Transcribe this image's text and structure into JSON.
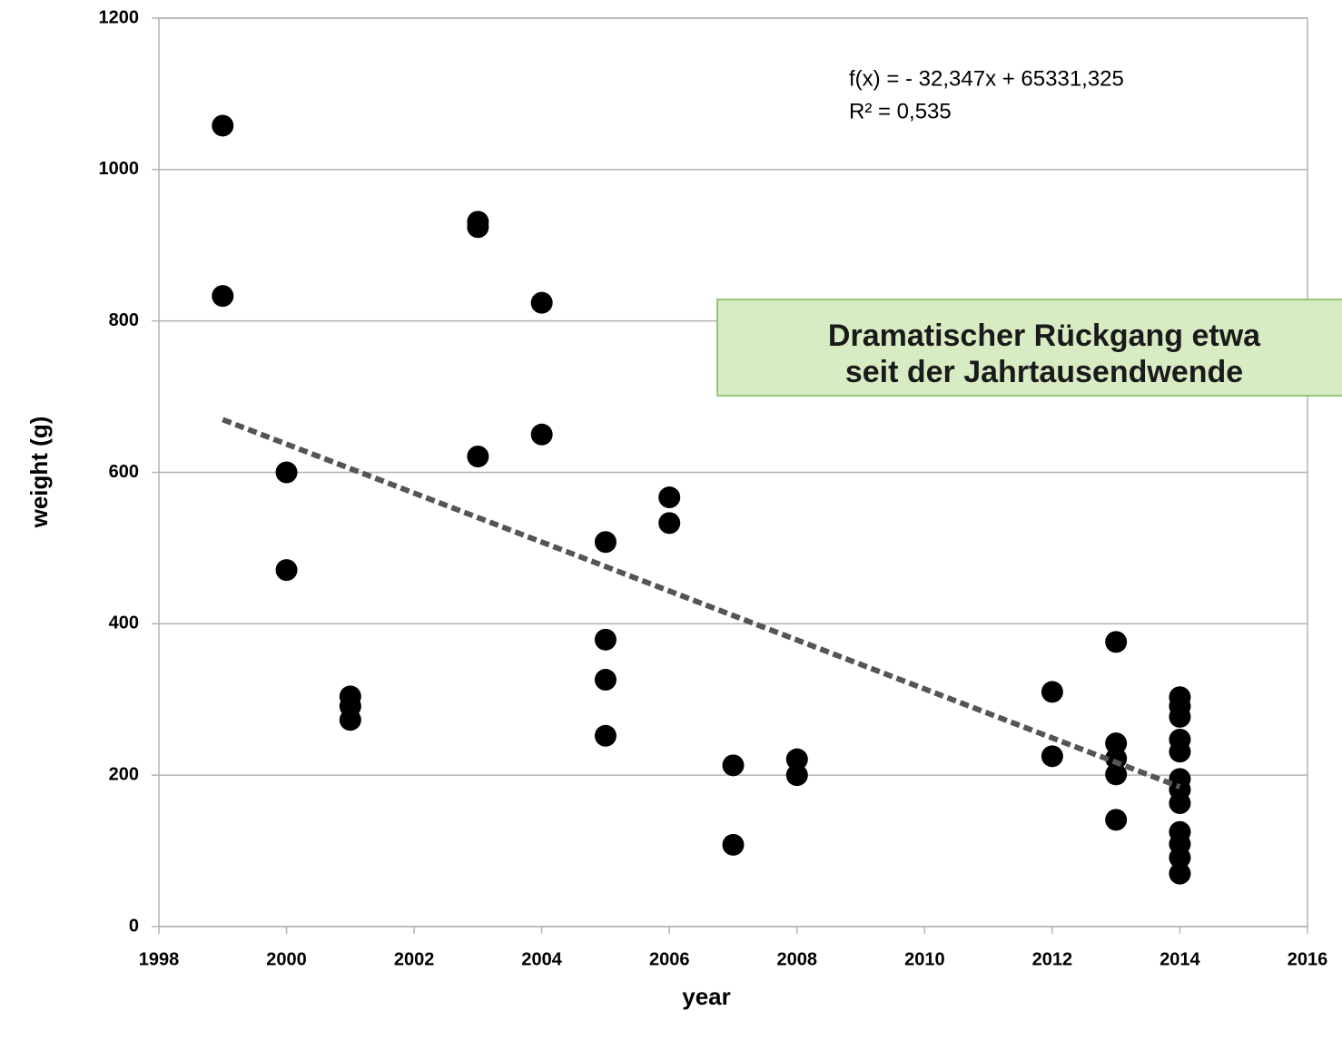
{
  "chart_data": {
    "type": "scatter",
    "x": [
      1999,
      1999,
      2000,
      2000,
      2001,
      2001,
      2001,
      2003,
      2003,
      2003,
      2004,
      2004,
      2005,
      2005,
      2005,
      2005,
      2006,
      2006,
      2007,
      2007,
      2008,
      2008,
      2012,
      2012,
      2013,
      2013,
      2013,
      2013,
      2013,
      2014,
      2014,
      2014,
      2014,
      2014,
      2014,
      2014,
      2014,
      2014,
      2014,
      2014,
      2014
    ],
    "values": [
      1058,
      833,
      600,
      471,
      304,
      291,
      273,
      931,
      924,
      621,
      824,
      650,
      508,
      379,
      326,
      252,
      567,
      533,
      213,
      108,
      221,
      200,
      310,
      225,
      376,
      242,
      222,
      201,
      141,
      303,
      291,
      277,
      247,
      231,
      195,
      181,
      163,
      125,
      109,
      91,
      70
    ],
    "color": "#000000",
    "trendline": {
      "x": [
        1999,
        2014
      ],
      "values": [
        669.67,
        184.47
      ],
      "color": "#555555"
    },
    "equation": "f(x) =  - 32,347x + 65331,325",
    "r_squared": "R² = 0,535",
    "annotation": [
      "Dramatischer Rückgang etwa",
      "seit der Jahrtausendwende"
    ],
    "x_label": "year",
    "y_label": "weight  (g)",
    "xlim": [
      1998,
      2016
    ],
    "ylim": [
      0,
      1200
    ],
    "xticks": [
      1998,
      2000,
      2002,
      2004,
      2006,
      2008,
      2010,
      2012,
      2014,
      2016
    ],
    "yticks": [
      0,
      200,
      400,
      600,
      800,
      1000,
      1200
    ],
    "grid": true
  }
}
